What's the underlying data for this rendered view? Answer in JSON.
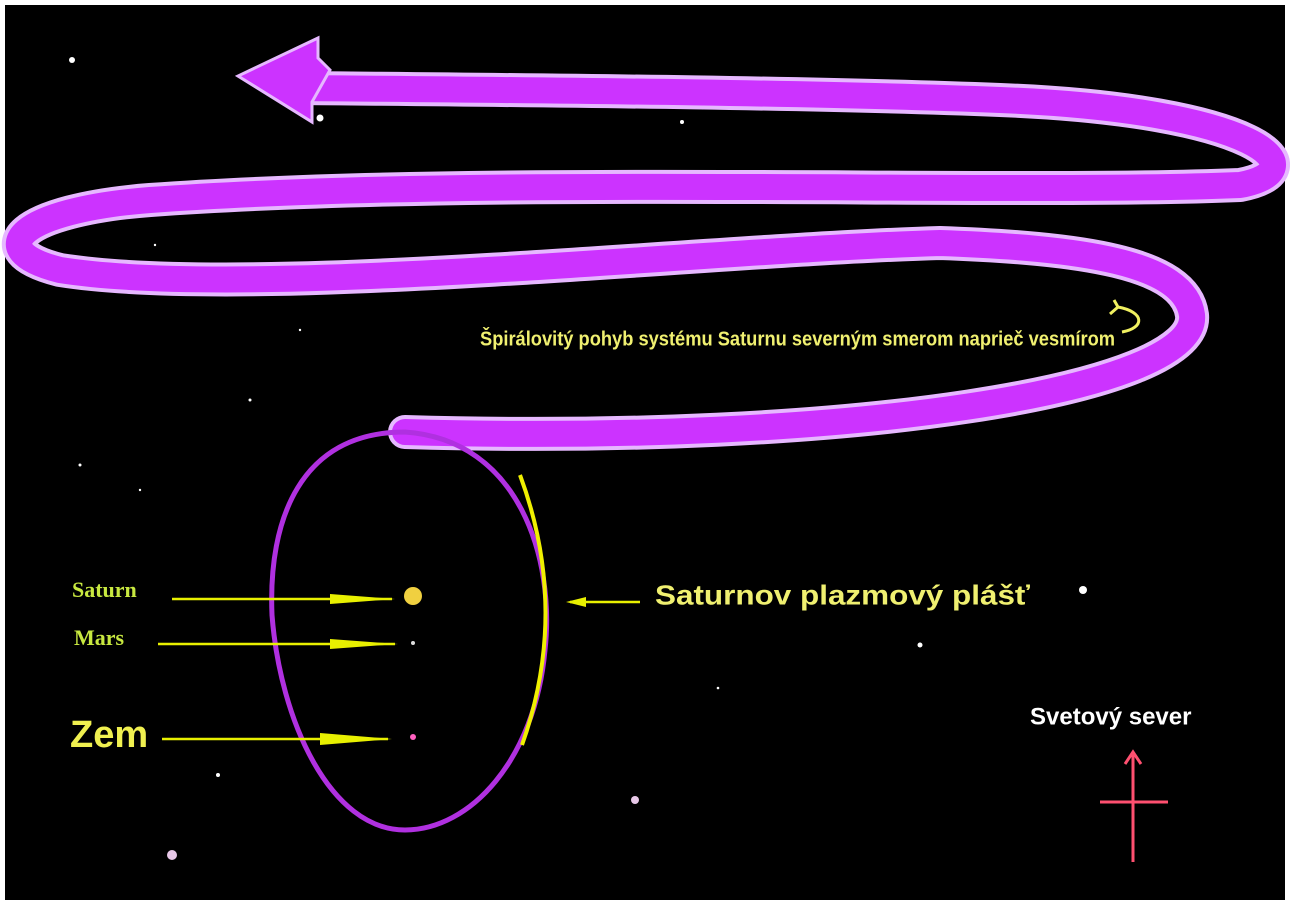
{
  "spiral_caption": "Špirálovitý pohyb systému Saturnu severným smerom naprieč vesmírom",
  "bodies": [
    {
      "label": "Saturn"
    },
    {
      "label": "Mars"
    },
    {
      "label": "Zem"
    }
  ],
  "plasma_sheath_label": "Saturnov plazmový plášť",
  "north_label": "Svetový sever"
}
